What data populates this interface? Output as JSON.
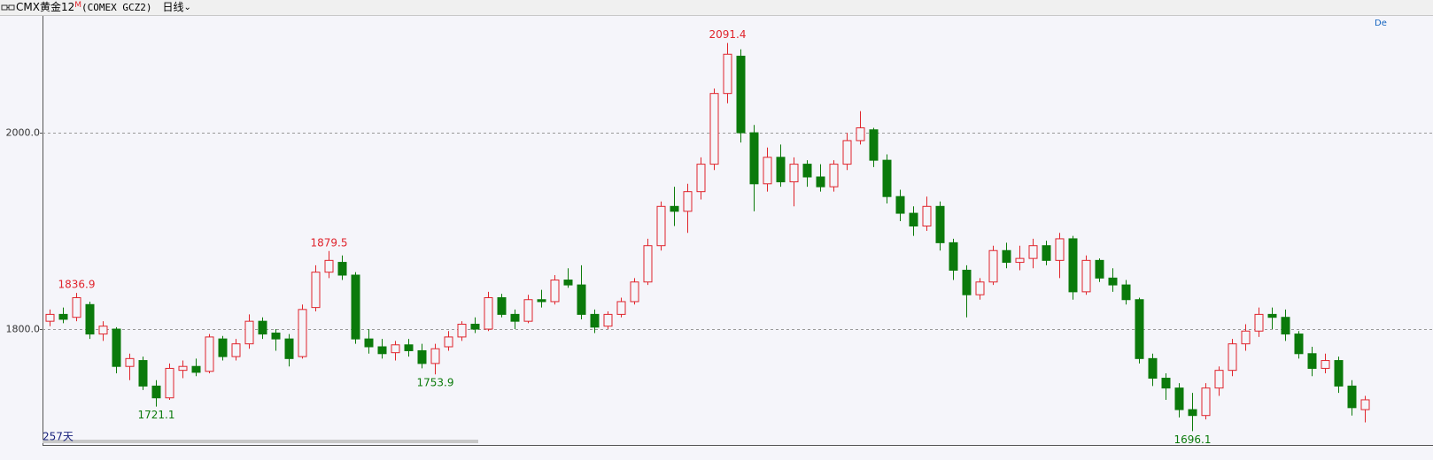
{
  "header": {
    "symbol": "CMX黄金12",
    "badge": "M",
    "code": "(COMEX GCZ2)",
    "period": "日线",
    "count": "257天",
    "corner": "De"
  },
  "chart_data": {
    "type": "candlestick",
    "ylim": [
      1682,
      2119
    ],
    "yticks": [
      {
        "value": 1800,
        "label": "1800.0"
      },
      {
        "value": 2000,
        "label": "2000.0"
      }
    ],
    "grid": true,
    "up_color": "#e0242c",
    "down_color": "#0b7a0b",
    "ohlc": [
      [
        1808,
        1820,
        1803,
        1815
      ],
      [
        1815,
        1822,
        1806,
        1810
      ],
      [
        1812,
        1836.9,
        1808,
        1832
      ],
      [
        1825,
        1828,
        1790,
        1795
      ],
      [
        1795,
        1808,
        1788,
        1803
      ],
      [
        1800,
        1802,
        1755,
        1762
      ],
      [
        1762,
        1775,
        1748,
        1770
      ],
      [
        1768,
        1772,
        1738,
        1742
      ],
      [
        1742,
        1748,
        1721.1,
        1730
      ],
      [
        1730,
        1765,
        1728,
        1760
      ],
      [
        1758,
        1768,
        1750,
        1762
      ],
      [
        1762,
        1770,
        1752,
        1756
      ],
      [
        1757,
        1795,
        1755,
        1792
      ],
      [
        1790,
        1793,
        1768,
        1772
      ],
      [
        1772,
        1790,
        1768,
        1785
      ],
      [
        1785,
        1815,
        1780,
        1808
      ],
      [
        1808,
        1812,
        1790,
        1795
      ],
      [
        1796,
        1800,
        1778,
        1790
      ],
      [
        1790,
        1795,
        1762,
        1770
      ],
      [
        1772,
        1825,
        1770,
        1820
      ],
      [
        1822,
        1865,
        1818,
        1858
      ],
      [
        1858,
        1879.5,
        1852,
        1870
      ],
      [
        1868,
        1875,
        1850,
        1855
      ],
      [
        1855,
        1858,
        1785,
        1790
      ],
      [
        1790,
        1800,
        1775,
        1782
      ],
      [
        1782,
        1790,
        1770,
        1775
      ],
      [
        1776,
        1788,
        1768,
        1784
      ],
      [
        1784,
        1790,
        1772,
        1778
      ],
      [
        1778,
        1785,
        1760,
        1765
      ],
      [
        1765,
        1785,
        1753.9,
        1780
      ],
      [
        1782,
        1798,
        1778,
        1792
      ],
      [
        1792,
        1808,
        1788,
        1805
      ],
      [
        1805,
        1812,
        1796,
        1800
      ],
      [
        1800,
        1838,
        1798,
        1832
      ],
      [
        1832,
        1836,
        1812,
        1815
      ],
      [
        1815,
        1820,
        1800,
        1808
      ],
      [
        1808,
        1835,
        1806,
        1830
      ],
      [
        1830,
        1840,
        1822,
        1828
      ],
      [
        1828,
        1855,
        1825,
        1850
      ],
      [
        1850,
        1862,
        1842,
        1845
      ],
      [
        1845,
        1865,
        1810,
        1815
      ],
      [
        1815,
        1820,
        1796,
        1802
      ],
      [
        1803,
        1818,
        1800,
        1815
      ],
      [
        1815,
        1832,
        1812,
        1828
      ],
      [
        1828,
        1852,
        1825,
        1848
      ],
      [
        1848,
        1892,
        1845,
        1885
      ],
      [
        1885,
        1930,
        1880,
        1925
      ],
      [
        1925,
        1945,
        1905,
        1920
      ],
      [
        1920,
        1948,
        1898,
        1940
      ],
      [
        1940,
        1975,
        1932,
        1968
      ],
      [
        1968,
        2045,
        1962,
        2040
      ],
      [
        2040,
        2091.4,
        2030,
        2080
      ],
      [
        2078,
        2085,
        1990,
        2000
      ],
      [
        2000,
        2008,
        1920,
        1948
      ],
      [
        1948,
        1985,
        1940,
        1975
      ],
      [
        1975,
        1988,
        1945,
        1950
      ],
      [
        1950,
        1975,
        1925,
        1968
      ],
      [
        1968,
        1972,
        1945,
        1955
      ],
      [
        1955,
        1968,
        1940,
        1945
      ],
      [
        1945,
        1972,
        1940,
        1968
      ],
      [
        1968,
        2000,
        1962,
        1992
      ],
      [
        1992,
        2022,
        1988,
        2005
      ],
      [
        2003,
        2005,
        1965,
        1972
      ],
      [
        1972,
        1978,
        1928,
        1935
      ],
      [
        1935,
        1942,
        1910,
        1918
      ],
      [
        1918,
        1925,
        1895,
        1905
      ],
      [
        1905,
        1935,
        1900,
        1925
      ],
      [
        1925,
        1930,
        1880,
        1888
      ],
      [
        1888,
        1892,
        1850,
        1860
      ],
      [
        1860,
        1865,
        1812,
        1835
      ],
      [
        1835,
        1852,
        1830,
        1848
      ],
      [
        1848,
        1885,
        1845,
        1880
      ],
      [
        1880,
        1888,
        1862,
        1868
      ],
      [
        1868,
        1885,
        1860,
        1872
      ],
      [
        1872,
        1892,
        1862,
        1885
      ],
      [
        1885,
        1890,
        1865,
        1870
      ],
      [
        1870,
        1898,
        1852,
        1892
      ],
      [
        1892,
        1895,
        1830,
        1838
      ],
      [
        1838,
        1875,
        1835,
        1870
      ],
      [
        1870,
        1872,
        1848,
        1852
      ],
      [
        1852,
        1862,
        1838,
        1845
      ],
      [
        1845,
        1850,
        1825,
        1830
      ],
      [
        1830,
        1832,
        1765,
        1770
      ],
      [
        1770,
        1775,
        1742,
        1750
      ],
      [
        1750,
        1755,
        1728,
        1740
      ],
      [
        1740,
        1745,
        1710,
        1718
      ],
      [
        1718,
        1735,
        1696.1,
        1712
      ],
      [
        1712,
        1745,
        1708,
        1740
      ],
      [
        1740,
        1762,
        1732,
        1758
      ],
      [
        1758,
        1790,
        1752,
        1785
      ],
      [
        1785,
        1805,
        1778,
        1798
      ],
      [
        1798,
        1822,
        1792,
        1815
      ],
      [
        1815,
        1822,
        1800,
        1812
      ],
      [
        1812,
        1820,
        1788,
        1795
      ],
      [
        1795,
        1798,
        1770,
        1775
      ],
      [
        1775,
        1782,
        1752,
        1760
      ],
      [
        1760,
        1775,
        1755,
        1768
      ],
      [
        1768,
        1772,
        1735,
        1742
      ],
      [
        1742,
        1748,
        1712,
        1720
      ],
      [
        1718,
        1732,
        1705,
        1728
      ]
    ],
    "annotations": [
      {
        "value": 1836.9,
        "color": "#e0242c"
      },
      {
        "value": 1879.5,
        "color": "#e0242c"
      },
      {
        "value": 2091.4,
        "color": "#e0242c"
      },
      {
        "value": 1721.1,
        "color": "#0b7a0b"
      },
      {
        "value": 1753.9,
        "color": "#0b7a0b"
      },
      {
        "value": 1696.1,
        "color": "#0b7a0b"
      }
    ]
  }
}
